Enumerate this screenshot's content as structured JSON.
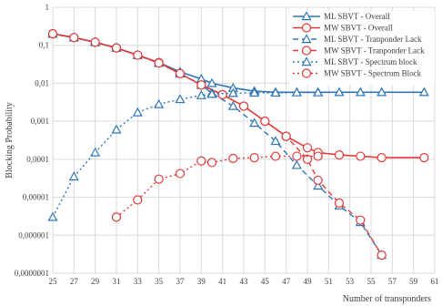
{
  "chart_data": {
    "type": "line",
    "ylabel": "Blocking Probability",
    "xlabel": "Number of transponders",
    "yscale": "log",
    "ylim": [
      1e-07,
      1
    ],
    "y_ticks": [
      "1",
      "0,1",
      "0,01",
      "0,001",
      "0,0001",
      "0,00001",
      "0,000001",
      "0,0000001"
    ],
    "x_ticks": [
      "25",
      "27",
      "29",
      "31",
      "33",
      "35",
      "37",
      "39",
      "41",
      "43",
      "45",
      "47",
      "49",
      "51",
      "53",
      "55",
      "57",
      "59",
      "61"
    ],
    "xlim": [
      25,
      61
    ],
    "grid": true,
    "legend_position": "top-right",
    "series": [
      {
        "name": "ML SBVT - Overall",
        "color": "#2e75b6",
        "dash": "solid",
        "marker": "triangle",
        "x": [
          25,
          27,
          29,
          31,
          33,
          35,
          37,
          39,
          40,
          42,
          44,
          46,
          48,
          50,
          52,
          54,
          56,
          60
        ],
        "y": [
          0.2,
          0.16,
          0.12,
          0.085,
          0.055,
          0.035,
          0.02,
          0.013,
          0.01,
          0.0075,
          0.0062,
          0.0058,
          0.0058,
          0.0058,
          0.0058,
          0.0058,
          0.0058,
          0.0058
        ]
      },
      {
        "name": "MW SBVT - Overall",
        "color": "#e03a3a",
        "dash": "solid",
        "marker": "circle",
        "x": [
          25,
          27,
          29,
          31,
          33,
          35,
          37,
          39,
          41,
          43,
          45,
          47,
          49,
          50,
          52,
          54,
          56,
          60
        ],
        "y": [
          0.2,
          0.16,
          0.12,
          0.085,
          0.055,
          0.035,
          0.018,
          0.009,
          0.005,
          0.0025,
          0.001,
          0.0004,
          0.0002,
          0.00015,
          0.00013,
          0.00012,
          0.00011,
          0.00011
        ]
      },
      {
        "name": "ML SBVT - Tranponder Lack",
        "color": "#2e75b6",
        "dash": "dashed",
        "marker": "triangle",
        "x": [
          25,
          27,
          29,
          31,
          33,
          35,
          37,
          39,
          40,
          42,
          44,
          46,
          48,
          50,
          52,
          54,
          56
        ],
        "y": [
          0.2,
          0.16,
          0.12,
          0.085,
          0.055,
          0.034,
          0.018,
          0.009,
          0.0055,
          0.0025,
          0.0009,
          0.0003,
          7e-05,
          2e-05,
          6e-06,
          2.2e-06,
          3e-07
        ]
      },
      {
        "name": "MW SBVT - Tranponder Lack",
        "color": "#e03a3a",
        "dash": "dashed",
        "marker": "circle",
        "x": [
          25,
          27,
          29,
          31,
          33,
          35,
          37,
          39,
          41,
          43,
          45,
          47,
          49,
          50,
          52,
          54,
          56
        ],
        "y": [
          0.2,
          0.16,
          0.12,
          0.085,
          0.055,
          0.034,
          0.018,
          0.009,
          0.005,
          0.0025,
          0.001,
          0.0004,
          0.0001,
          2.8e-05,
          7e-06,
          2.5e-06,
          3e-07
        ]
      },
      {
        "name": "ML SBVT - Spectrum block",
        "color": "#2e75b6",
        "dash": "dotted",
        "marker": "triangle",
        "x": [
          25,
          27,
          29,
          31,
          33,
          35,
          37,
          39,
          40,
          42,
          44,
          46,
          48,
          50
        ],
        "y": [
          3e-06,
          3.5e-05,
          0.00015,
          0.0006,
          0.0017,
          0.0028,
          0.0038,
          0.0048,
          0.0052,
          0.0055,
          0.0056,
          0.0056,
          0.0057,
          0.0057
        ]
      },
      {
        "name": "MW SBVT - Spectrum Block",
        "color": "#e03a3a",
        "dash": "dotted",
        "marker": "circle",
        "x": [
          31,
          33,
          35,
          37,
          39,
          40,
          42,
          44,
          46,
          48,
          50
        ],
        "y": [
          3e-06,
          8.5e-06,
          3e-05,
          4.2e-05,
          9e-05,
          8.2e-05,
          0.000105,
          0.00011,
          0.00012,
          0.00012,
          0.00012
        ]
      }
    ]
  }
}
